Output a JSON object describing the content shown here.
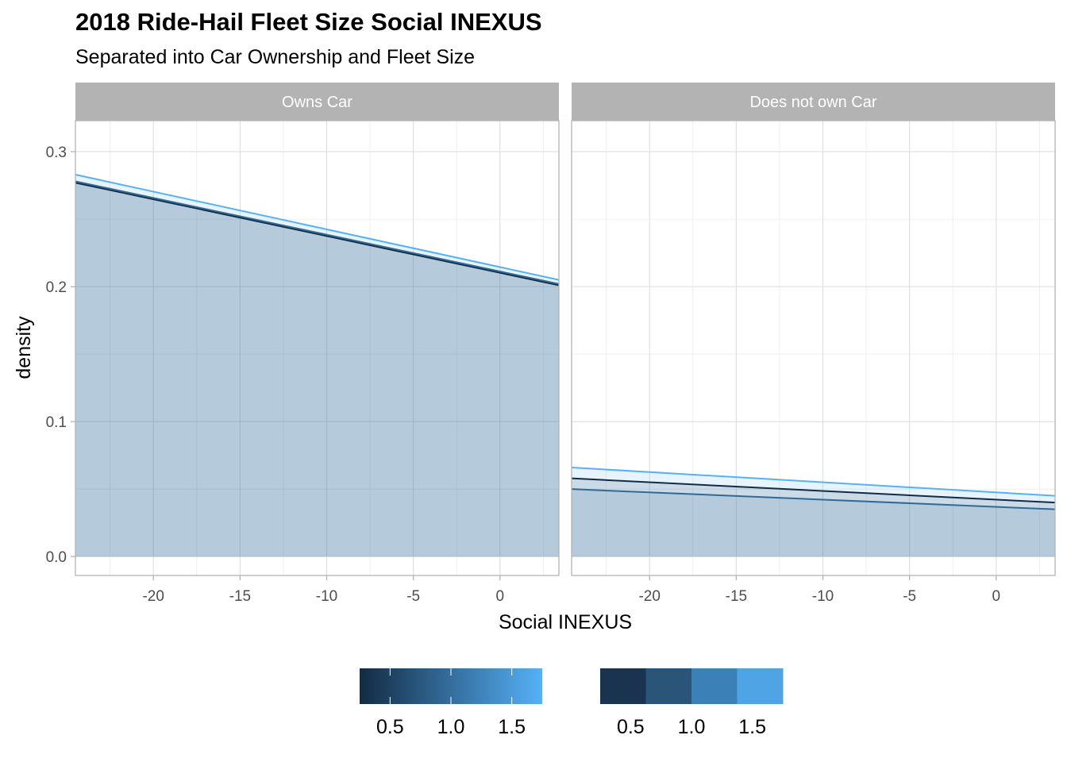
{
  "chart_data": {
    "type": "area",
    "title": "2018 Ride-Hail Fleet Size Social INEXUS",
    "subtitle": "Separated into Car Ownership and Fleet Size",
    "xlabel": "Social INEXUS",
    "ylabel": "density",
    "xlim": [
      -24.5,
      3.4
    ],
    "ylim": [
      -0.014,
      0.323
    ],
    "x_ticks": [
      -20,
      -15,
      -10,
      -5,
      0
    ],
    "x_tick_labels": [
      "-20",
      "-15",
      "-10",
      "-5",
      "0"
    ],
    "y_ticks": [
      0.0,
      0.1,
      0.2,
      0.3
    ],
    "y_tick_labels": [
      "0.0",
      "0.1",
      "0.2",
      "0.3"
    ],
    "grid": true,
    "fill_color": "#c8d6e2",
    "panels": [
      {
        "label": "Owns Car",
        "series": [
          {
            "color": "#132b43",
            "x": [
              -24.5,
              3.4
            ],
            "y": [
              0.277,
              0.201
            ]
          },
          {
            "color": "#326a96",
            "x": [
              -24.5,
              3.4
            ],
            "y": [
              0.278,
              0.202
            ]
          },
          {
            "color": "#56b1f7",
            "x": [
              -24.5,
              3.4
            ],
            "y": [
              0.283,
              0.205
            ]
          }
        ]
      },
      {
        "label": "Does not own Car",
        "series": [
          {
            "color": "#132b43",
            "x": [
              -24.5,
              3.4
            ],
            "y": [
              0.058,
              0.04
            ]
          },
          {
            "color": "#326a96",
            "x": [
              -24.5,
              3.4
            ],
            "y": [
              0.05,
              0.035
            ]
          },
          {
            "color": "#56b1f7",
            "x": [
              -24.5,
              3.4
            ],
            "y": [
              0.066,
              0.045
            ]
          }
        ]
      }
    ],
    "legends": [
      {
        "kind": "colorbar",
        "gradient": [
          "#132b43",
          "#56b1f7"
        ],
        "range": [
          0.25,
          1.75
        ],
        "ticks": [
          0.5,
          1.0,
          1.5
        ],
        "tick_labels": [
          "0.5",
          "1.0",
          "1.5"
        ]
      },
      {
        "kind": "colorsteps",
        "colors": [
          "#1a334e",
          "#2a5478",
          "#3c80b8",
          "#4fa4e6"
        ],
        "range": [
          0.25,
          1.75
        ],
        "ticks": [
          0.5,
          1.0,
          1.5
        ],
        "tick_labels": [
          "0.5",
          "1.0",
          "1.5"
        ]
      }
    ]
  }
}
